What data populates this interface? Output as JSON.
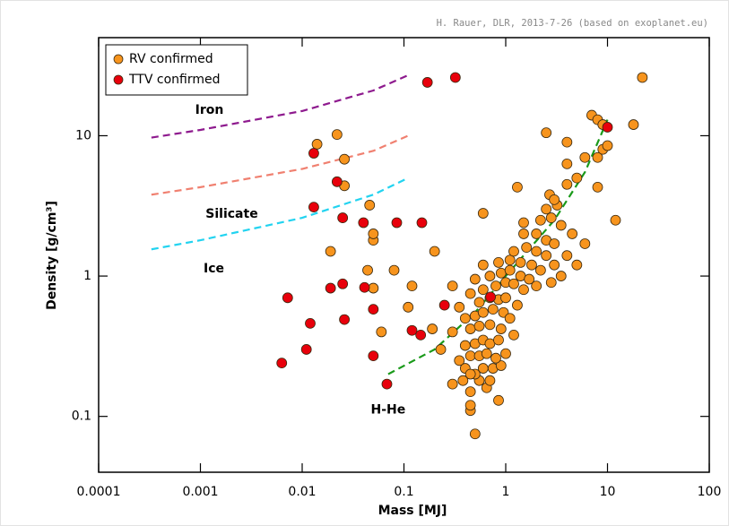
{
  "chart_data": {
    "type": "scatter",
    "credit": "H. Rauer, DLR, 2013-7-26 (based on exoplanet.eu)",
    "x_label": "Mass [MJ]",
    "y_label": "Density [g/cm³]",
    "log_x": true,
    "log_y": true,
    "xlim": [
      0.0001,
      100
    ],
    "ylim": [
      0.04,
      50
    ],
    "xticks": [
      0.0001,
      0.001,
      0.01,
      0.1,
      1,
      10,
      100
    ],
    "yticks": [
      0.1,
      1,
      10
    ],
    "legend_position": "upper left",
    "series": [
      {
        "name": "RV confirmed",
        "color": "#f7941d",
        "x": [
          0.5,
          0.45,
          0.45,
          0.3,
          0.45,
          0.55,
          0.65,
          0.7,
          0.85,
          0.4,
          0.5,
          0.6,
          0.75,
          0.9,
          0.35,
          0.45,
          0.55,
          0.65,
          0.8,
          1.0,
          0.4,
          0.5,
          0.6,
          0.7,
          0.85,
          0.3,
          0.45,
          0.55,
          0.7,
          0.9,
          1.2,
          0.4,
          0.5,
          0.6,
          0.75,
          0.95,
          1.1,
          0.35,
          0.55,
          0.7,
          0.85,
          1.0,
          1.3,
          0.45,
          0.6,
          0.8,
          1.0,
          1.2,
          1.5,
          0.5,
          0.7,
          0.9,
          1.1,
          1.4,
          1.7,
          2.0,
          0.6,
          0.85,
          1.1,
          1.4,
          1.8,
          2.2,
          2.8,
          1.2,
          1.6,
          2.0,
          2.5,
          3.0,
          3.5,
          1.5,
          2.0,
          2.5,
          3.0,
          4.0,
          5.0,
          2.2,
          2.8,
          3.5,
          4.5,
          6.0,
          2.5,
          3.2,
          2.7,
          0.3,
          0.2,
          0.12,
          0.11,
          0.19,
          0.23,
          0.08,
          0.06,
          0.05,
          0.044,
          0.05,
          0.05,
          0.046,
          0.019,
          0.014,
          0.022,
          0.026,
          0.026,
          0.6,
          1.3,
          1.5,
          3,
          4,
          4,
          5,
          8,
          2.5,
          4,
          7,
          8,
          6,
          8,
          9,
          10,
          12,
          18,
          22,
          9,
          0.45,
          0.38
        ],
        "values": [
          0.075,
          0.11,
          0.12,
          0.17,
          0.15,
          0.18,
          0.16,
          0.18,
          0.13,
          0.22,
          0.2,
          0.22,
          0.22,
          0.23,
          0.25,
          0.27,
          0.27,
          0.28,
          0.26,
          0.28,
          0.32,
          0.33,
          0.35,
          0.33,
          0.35,
          0.4,
          0.42,
          0.44,
          0.45,
          0.42,
          0.38,
          0.5,
          0.52,
          0.55,
          0.58,
          0.55,
          0.5,
          0.6,
          0.65,
          0.7,
          0.68,
          0.7,
          0.62,
          0.75,
          0.8,
          0.85,
          0.9,
          0.88,
          0.8,
          0.95,
          1.0,
          1.05,
          1.1,
          1.0,
          0.95,
          0.85,
          1.2,
          1.25,
          1.3,
          1.25,
          1.2,
          1.1,
          0.9,
          1.5,
          1.6,
          1.5,
          1.4,
          1.2,
          1.0,
          2.0,
          2.0,
          1.8,
          1.7,
          1.4,
          1.2,
          2.5,
          2.6,
          2.3,
          2.0,
          1.7,
          3.0,
          3.2,
          3.8,
          0.85,
          1.5,
          0.85,
          0.6,
          0.42,
          0.3,
          1.1,
          0.4,
          0.82,
          1.1,
          1.8,
          2.0,
          3.2,
          1.5,
          8.7,
          10.2,
          6.8,
          4.4,
          2.8,
          4.3,
          2.4,
          3.5,
          4.5,
          6.3,
          5,
          4.3,
          10.5,
          9,
          14,
          13,
          7,
          7,
          8,
          8.5,
          2.5,
          12,
          26,
          12,
          0.2,
          0.18
        ]
      },
      {
        "name": "TTV confirmed",
        "color": "#e8000b",
        "x": [
          0.17,
          0.32,
          0.013,
          0.022,
          0.013,
          0.025,
          0.04,
          0.085,
          0.15,
          0.0072,
          0.012,
          0.011,
          0.0063,
          0.019,
          0.025,
          0.026,
          0.041,
          0.05,
          0.05,
          0.068,
          0.12,
          0.146,
          0.25,
          0.71,
          10
        ],
        "values": [
          24,
          26,
          7.5,
          4.7,
          3.1,
          2.6,
          2.4,
          2.4,
          2.4,
          0.7,
          0.46,
          0.3,
          0.24,
          0.82,
          0.88,
          0.49,
          0.83,
          0.58,
          0.27,
          0.17,
          0.41,
          0.38,
          0.62,
          0.71,
          11.5
        ]
      }
    ],
    "curves": [
      {
        "name": "Iron",
        "color": "#8e1a8e",
        "x": [
          0.00033,
          0.001,
          0.01,
          0.05,
          0.11
        ],
        "values": [
          9.7,
          11,
          15,
          21,
          27
        ]
      },
      {
        "name": "Silicate",
        "color": "#f08070",
        "x": [
          0.00033,
          0.001,
          0.01,
          0.05,
          0.11
        ],
        "values": [
          3.8,
          4.3,
          5.8,
          7.8,
          10
        ]
      },
      {
        "name": "Ice",
        "color": "#22d3f0",
        "x": [
          0.00033,
          0.001,
          0.01,
          0.05,
          0.11
        ],
        "values": [
          1.55,
          1.8,
          2.6,
          3.8,
          5.0
        ]
      },
      {
        "name": "H-He",
        "color": "#1a9a1a",
        "x": [
          0.07,
          0.2,
          0.5,
          1,
          3,
          6,
          10
        ],
        "values": [
          0.2,
          0.3,
          0.55,
          1.0,
          2.5,
          5.5,
          13
        ]
      }
    ]
  }
}
